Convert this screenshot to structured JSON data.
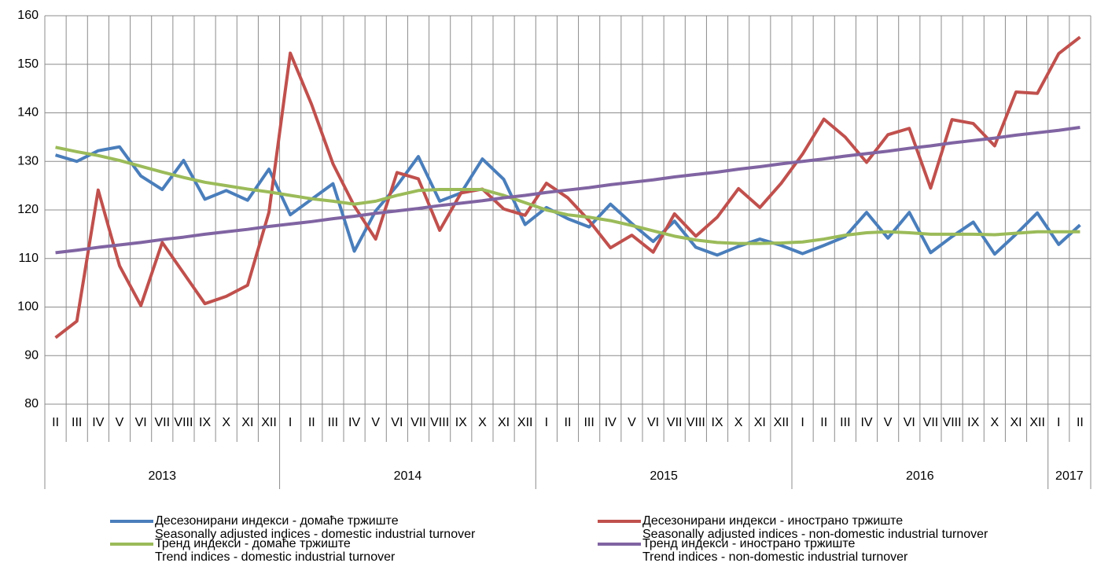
{
  "chart_data": {
    "type": "line",
    "categories": [
      "II",
      "III",
      "IV",
      "V",
      "VI",
      "VII",
      "VIII",
      "IX",
      "X",
      "XI",
      "XII",
      "I",
      "II",
      "III",
      "IV",
      "V",
      "VI",
      "VII",
      "VIII",
      "IX",
      "X",
      "XI",
      "XII",
      "I",
      "II",
      "III",
      "IV",
      "V",
      "VI",
      "VII",
      "VIII",
      "IX",
      "X",
      "XI",
      "XII",
      "I",
      "II",
      "III",
      "IV",
      "V",
      "VI",
      "VII",
      "VIII",
      "IX",
      "X",
      "XI",
      "XII",
      "I",
      "II"
    ],
    "x_groups": [
      {
        "label": "2013",
        "size": 11
      },
      {
        "label": "2014",
        "size": 12
      },
      {
        "label": "2015",
        "size": 12
      },
      {
        "label": "2016",
        "size": 12
      },
      {
        "label": "2017",
        "size": 2
      }
    ],
    "ylim": [
      80,
      160
    ],
    "yticks": [
      80,
      90,
      100,
      110,
      120,
      130,
      140,
      150,
      160
    ],
    "grid": true,
    "series": [
      {
        "name": "Десезонирани индекси - домаће тржиште",
        "name_en": "Seasonally adjusted indices - domestic industrial turnover",
        "color": "#4a7ebb",
        "values": [
          131.3,
          130,
          132.2,
          133,
          127,
          124.2,
          130.2,
          122.2,
          124,
          122,
          128.4,
          119,
          122.2,
          125.4,
          111.5,
          119.8,
          125,
          131,
          121.8,
          123.5,
          130.5,
          126.3,
          117,
          120.5,
          118.2,
          116.5,
          121.2,
          117.2,
          113.5,
          117.7,
          112.3,
          110.7,
          112.5,
          114,
          112.7,
          111,
          112.7,
          114.5,
          119.5,
          114.2,
          119.5,
          111.2,
          114.5,
          117.5,
          110.9,
          115,
          119.4,
          112.9,
          116.9
        ]
      },
      {
        "name": "Десезонирани индекси - иностранo тржиште",
        "name_en": "Seasonally adjusted indices - non-domestic industrial turnover",
        "color": "#c0504d",
        "values": [
          93.7,
          97.1,
          124.1,
          108.5,
          100.3,
          113.3,
          107,
          100.7,
          102.2,
          104.5,
          119.5,
          152.3,
          141.7,
          129.5,
          120.8,
          114,
          127.7,
          126.4,
          115.8,
          123.5,
          124.3,
          120.2,
          118.9,
          125.5,
          122.5,
          117.8,
          112.2,
          114.8,
          111.3,
          119.2,
          114.6,
          118.5,
          124.4,
          120.5,
          125.5,
          131.5,
          138.7,
          135,
          129.8,
          135.5,
          136.8,
          124.5,
          138.6,
          137.8,
          133.2,
          144.3,
          144,
          152.2,
          155.6
        ]
      },
      {
        "name": "Тренд индекси - домаће тржиште",
        "name_en": "Trend indices - domestic industrial turnover",
        "color": "#9bbb59",
        "values": [
          132.9,
          132,
          131.2,
          130.2,
          129,
          127.8,
          126.7,
          125.7,
          125,
          124.3,
          123.7,
          123,
          122.3,
          121.8,
          121.2,
          121.8,
          123,
          124,
          124.2,
          124.2,
          124.2,
          123,
          121.5,
          120,
          119,
          118.5,
          117.8,
          116.8,
          115.7,
          114.6,
          113.8,
          113.3,
          113.1,
          113.1,
          113.2,
          113.4,
          114,
          114.8,
          115.3,
          115.5,
          115.3,
          115,
          115,
          115,
          114.9,
          115.2,
          115.5,
          115.5,
          115.5
        ]
      },
      {
        "name": "Тренд индекси - иностранo тржиште",
        "name_en": "Trend indices - non-domestic industrial turnover",
        "color": "#8064a2",
        "values": [
          111.2,
          111.7,
          112.3,
          112.8,
          113.3,
          113.9,
          114.4,
          115,
          115.5,
          116,
          116.6,
          117.1,
          117.6,
          118.2,
          118.7,
          119.3,
          119.8,
          120.3,
          120.9,
          121.4,
          121.9,
          122.5,
          123,
          123.6,
          124.1,
          124.6,
          125.2,
          125.7,
          126.2,
          126.8,
          127.3,
          127.8,
          128.4,
          128.9,
          129.5,
          130,
          130.5,
          131.1,
          131.6,
          132.1,
          132.7,
          133.2,
          133.8,
          134.3,
          134.8,
          135.4,
          135.9,
          136.4,
          137
        ]
      }
    ]
  }
}
